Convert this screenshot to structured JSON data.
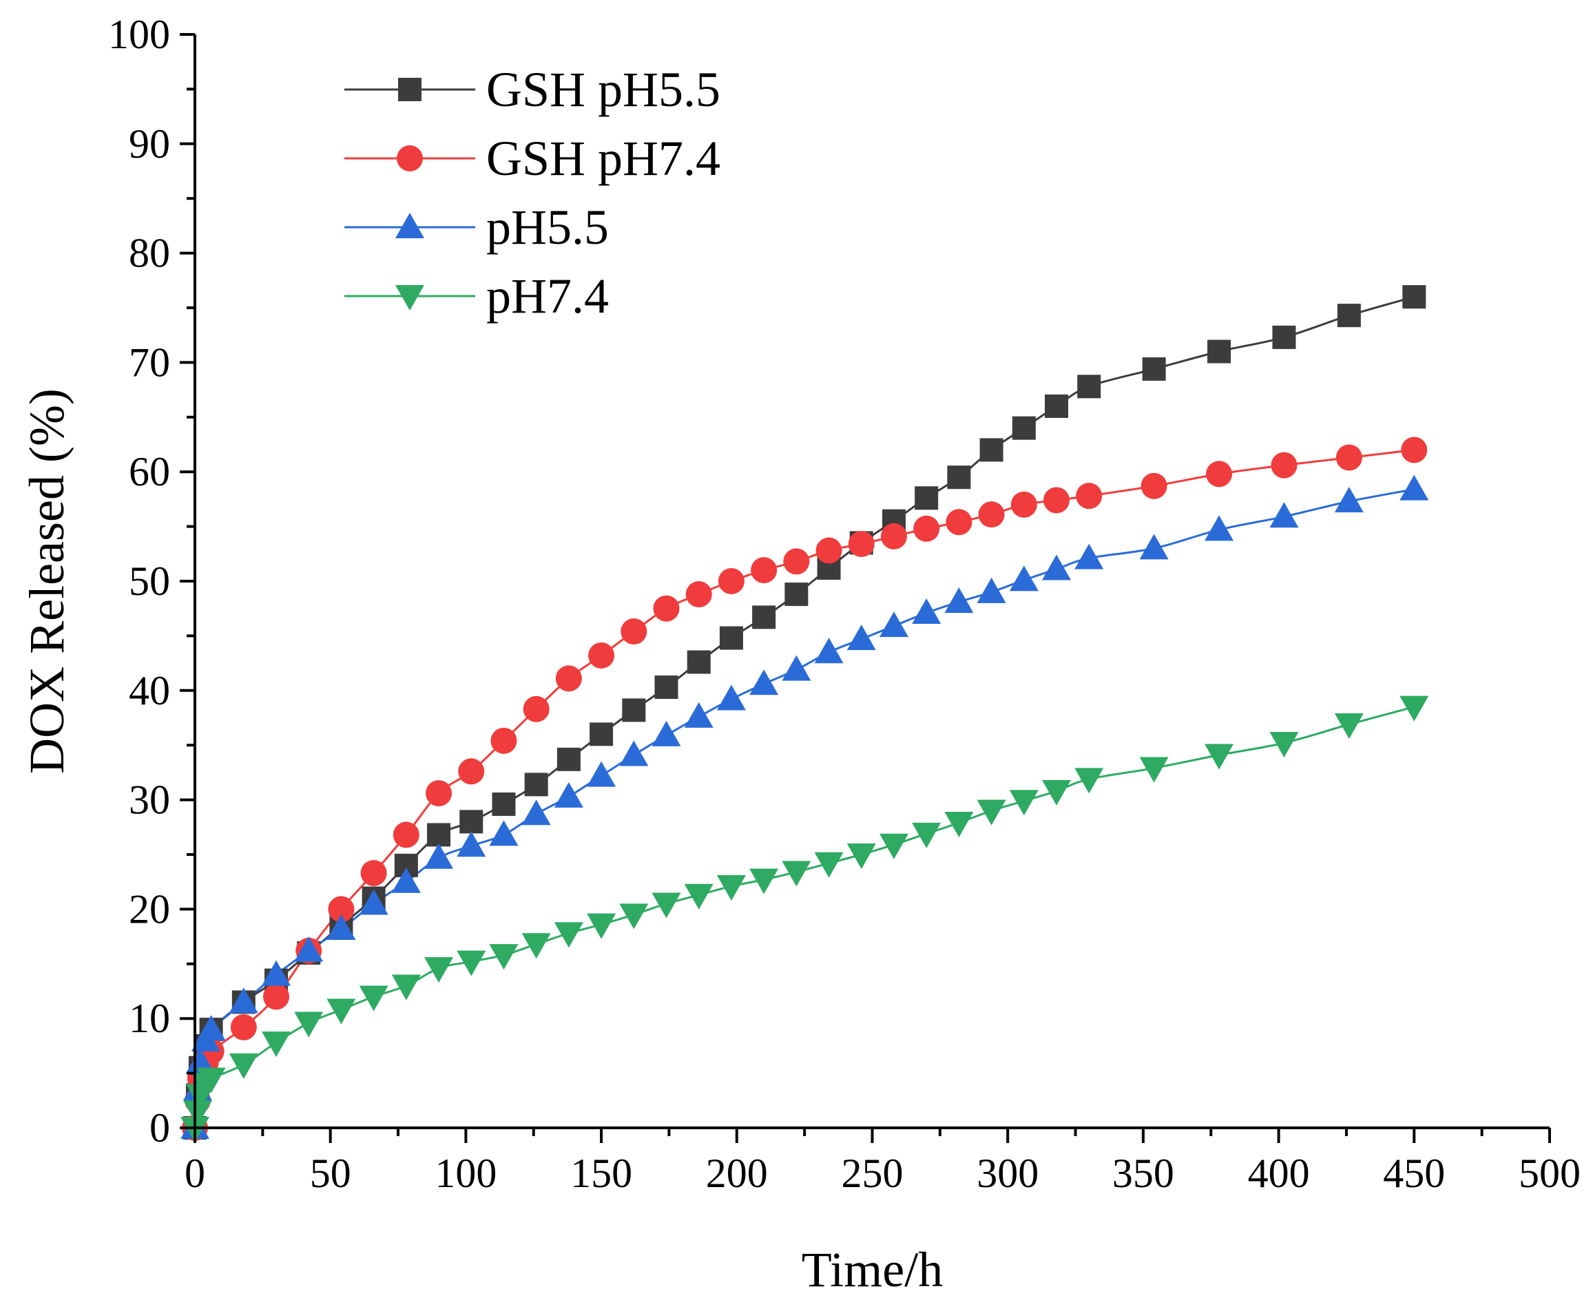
{
  "chart_data": {
    "type": "line",
    "title": "",
    "xlabel": "Time/h",
    "ylabel": "DOX Released (%)",
    "xlim": [
      0,
      500
    ],
    "ylim": [
      0,
      100
    ],
    "xticks": [
      "0",
      "50",
      "100",
      "150",
      "200",
      "250",
      "300",
      "350",
      "400",
      "450",
      "500"
    ],
    "yticks": [
      "0",
      "10",
      "20",
      "30",
      "40",
      "50",
      "60",
      "70",
      "80",
      "90",
      "100"
    ],
    "grid": false,
    "legend_position": "top-left",
    "series": [
      {
        "name": "GSH pH5.5",
        "color": "#3c3c3c",
        "marker": "square",
        "x": [
          0,
          1,
          2,
          4,
          6,
          18,
          30,
          42,
          54,
          66,
          78,
          90,
          102,
          114,
          126,
          138,
          150,
          162,
          174,
          186,
          198,
          210,
          222,
          234,
          246,
          258,
          270,
          282,
          294,
          306,
          318,
          330,
          354,
          378,
          402,
          426,
          450
        ],
        "y": [
          0,
          3,
          5.5,
          7.5,
          9,
          11.5,
          13.5,
          16,
          18.5,
          21,
          24,
          26.8,
          28,
          29.6,
          31.4,
          33.7,
          36,
          38.2,
          40.3,
          42.6,
          44.8,
          46.7,
          48.8,
          51.2,
          53.5,
          55.5,
          57.6,
          59.5,
          62,
          64,
          66,
          67.8,
          69.4,
          71,
          72.3,
          74.3,
          76
        ]
      },
      {
        "name": "GSH pH7.4",
        "color": "#f03c3c",
        "marker": "circle",
        "x": [
          0,
          1,
          2,
          4,
          6,
          18,
          30,
          42,
          54,
          66,
          78,
          90,
          102,
          114,
          126,
          138,
          150,
          162,
          174,
          186,
          198,
          210,
          222,
          234,
          246,
          258,
          270,
          282,
          294,
          306,
          318,
          330,
          354,
          378,
          402,
          426,
          450
        ],
        "y": [
          0,
          2.5,
          4.5,
          6,
          7,
          9.2,
          12,
          16.2,
          20,
          23.3,
          26.8,
          30.6,
          32.6,
          35.4,
          38.3,
          41.1,
          43.2,
          45.4,
          47.5,
          48.8,
          50,
          51,
          51.8,
          52.8,
          53.4,
          54.1,
          54.8,
          55.4,
          56.1,
          57,
          57.4,
          57.8,
          58.7,
          59.8,
          60.6,
          61.3,
          62
        ]
      },
      {
        "name": "pH5.5",
        "color": "#2a6bd8",
        "marker": "triangle-up",
        "x": [
          0,
          1,
          2,
          4,
          6,
          18,
          30,
          42,
          54,
          66,
          78,
          90,
          102,
          114,
          126,
          138,
          150,
          162,
          174,
          186,
          198,
          210,
          222,
          234,
          246,
          258,
          270,
          282,
          294,
          306,
          318,
          330,
          354,
          378,
          402,
          426,
          450
        ],
        "y": [
          0,
          3.5,
          6,
          8,
          9,
          11.5,
          14,
          16.2,
          18.2,
          20.5,
          22.5,
          24.7,
          25.8,
          26.8,
          28.7,
          30.3,
          32.2,
          34.1,
          35.9,
          37.6,
          39.2,
          40.6,
          41.9,
          43.5,
          44.7,
          45.9,
          47.1,
          48.1,
          49,
          50.1,
          51.1,
          52.1,
          53,
          54.7,
          55.9,
          57.3,
          58.4
        ]
      },
      {
        "name": "pH7.4",
        "color": "#2eaa62",
        "marker": "triangle-down",
        "x": [
          0,
          1,
          2,
          4,
          6,
          18,
          30,
          42,
          54,
          66,
          78,
          90,
          102,
          114,
          126,
          138,
          150,
          162,
          174,
          186,
          198,
          210,
          222,
          234,
          246,
          258,
          270,
          282,
          294,
          306,
          318,
          330,
          354,
          378,
          402,
          426,
          450
        ],
        "y": [
          0,
          1.5,
          3,
          4,
          4.5,
          5.8,
          7.8,
          9.6,
          10.8,
          12,
          13,
          14.6,
          15.2,
          15.8,
          16.8,
          17.8,
          18.6,
          19.5,
          20.5,
          21.3,
          22.1,
          22.7,
          23.4,
          24.2,
          25,
          25.9,
          26.9,
          27.9,
          29,
          29.9,
          30.8,
          31.9,
          32.9,
          34.1,
          35.2,
          36.9,
          38.5
        ]
      }
    ]
  }
}
